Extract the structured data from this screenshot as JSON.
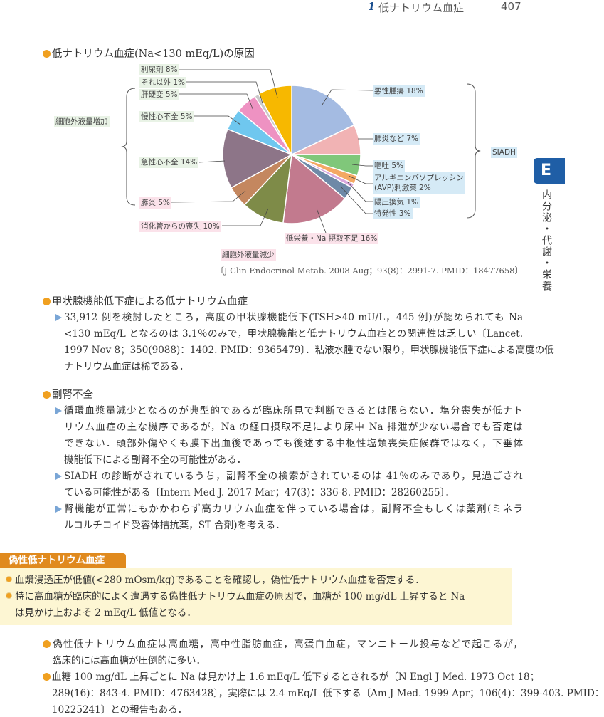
{
  "header": {
    "chapter_num": "1",
    "chapter_title": "低ナトリウム血症",
    "page": "407"
  },
  "side_tab": {
    "letter": "E",
    "section": "内分泌・代謝・栄養",
    "color": "#1f5ea6"
  },
  "pie": {
    "title": "低ナトリウム血症(Na<130 mEq/L)の原因",
    "groups": {
      "increase": "細胞外液量増加",
      "decrease": "細胞外液量減少",
      "siadh": "SIADH"
    },
    "slices": [
      {
        "label": "悪性腫瘍 18%",
        "value": 18,
        "color": "#a4bbe2",
        "group": "siadh"
      },
      {
        "label": "肺炎など 7%",
        "value": 7,
        "color": "#f1b3b4",
        "group": "siadh"
      },
      {
        "label": "嘔吐 5%",
        "value": 5,
        "color": "#80c77a",
        "group": "siadh"
      },
      {
        "label": "アルギニンバソプレッシン",
        "label2": "(AVP)刺激薬 2%",
        "value": 2,
        "color": "#f4a862",
        "group": "siadh"
      },
      {
        "label": "陽圧換気 1%",
        "value": 1,
        "color": "#d9a6dc",
        "group": "siadh"
      },
      {
        "label": "特発性 3%",
        "value": 3,
        "color": "#6e89a7",
        "group": "siadh"
      },
      {
        "label": "低栄養・Na 摂取不足 16%",
        "value": 16,
        "color": "#c27a8e",
        "group": "decrease"
      },
      {
        "label": "消化管からの喪失 10%",
        "value": 10,
        "color": "#7e8b48",
        "group": "decrease"
      },
      {
        "label": "膵炎 5%",
        "value": 5,
        "color": "#c4875f",
        "group": "decrease"
      },
      {
        "label": "急性心不全 14%",
        "value": 14,
        "color": "#8d7588",
        "group": "increase"
      },
      {
        "label": "慢性心不全 5%",
        "value": 5,
        "color": "#6fc7ef",
        "group": "increase"
      },
      {
        "label": "肝硬変 5%",
        "value": 5,
        "color": "#ee92c2",
        "group": "increase"
      },
      {
        "label": "それ以外 1%",
        "value": 1,
        "color": "#c9c9c9",
        "group": "increase"
      },
      {
        "label": "利尿剤 8%",
        "value": 8,
        "color": "#f7b800",
        "group": "increase"
      }
    ],
    "citation": "〔J Clin Endocrinol Metab. 2008 Aug；93(8)：2991-7. PMID：18477658〕"
  },
  "thyroid": {
    "heading": "甲状腺機能低下症による低ナトリウム血症",
    "items": [
      [
        "33,912 例を検討したところ，高度の甲状腺機能低下(TSH>40 mU/L，445 例)が認められても Na",
        "<130 mEq/L となるのは 3.1％のみで，甲状腺機能と低ナトリウム血症との関連性は乏しい〔Lancet.",
        "1997 Nov 8；350(9088)：1402. PMID：9365479〕．粘液水腫でない限り，甲状腺機能低下症による高度の低",
        "ナトリウム血症は稀である．"
      ]
    ]
  },
  "adrenal": {
    "heading": "副腎不全",
    "items": [
      [
        "循環血漿量減少となるのが典型的であるが臨床所見で判断できるとは限らない．塩分喪失が低ナト",
        "リウム血症の主な機序であるが，Na の経口摂取不足により尿中 Na 排泄が少ない場合でも否定は",
        "できない．頭部外傷やくも膜下出血後であっても後述する中枢性塩類喪失症候群ではなく，下垂体",
        "機能低下による副腎不全の可能性がある．"
      ],
      [
        "SIADH の診断がされているうち，副腎不全の検索がされているのは 41％のみであり，見過ごされ",
        "ている可能性がある〔Intern Med J. 2017 Mar；47(3)：336-8. PMID：28260255〕．"
      ],
      [
        "腎機能が正常にもかかわらず高カリウム血症を伴っている場合は，副腎不全もしくは薬剤(ミネラ",
        "ルコルチコイド受容体拮抗薬，ST 合剤)を考える．"
      ]
    ]
  },
  "pseudo": {
    "heading": "偽性低ナトリウム血症",
    "box_items": [
      [
        "血漿浸透圧が低値(<280 mOsm/kg)であることを確認し，偽性低ナトリウム血症を否定する．"
      ],
      [
        "特に高血糖が臨床的によく遭遇する偽性低ナトリウム血症の原因で，血糖が 100 mg/dL 上昇すると Na",
        "は見かけ上およそ 2 mEq/L 低値となる．"
      ]
    ],
    "items": [
      [
        "偽性低ナトリウム血症は高血糖，高中性脂肪血症，高蛋白血症，マンニトール投与などで起こるが，",
        "臨床的には高血糖が圧倒的に多い．"
      ],
      [
        "血糖 100 mg/dL 上昇ごとに Na は見かけ上 1.6 mEq/L 低下するとされるが〔N Engl J Med. 1973 Oct 18；",
        "289(16)：843-4. PMID：4763428〕，実際には 2.4 mEq/L 低下する〔Am J Med. 1999 Apr；106(4)：399-403. PMID：",
        "10225241〕との報告もある．"
      ]
    ],
    "accent": "#e08a1e",
    "box_bg": "#fdf6d3"
  }
}
